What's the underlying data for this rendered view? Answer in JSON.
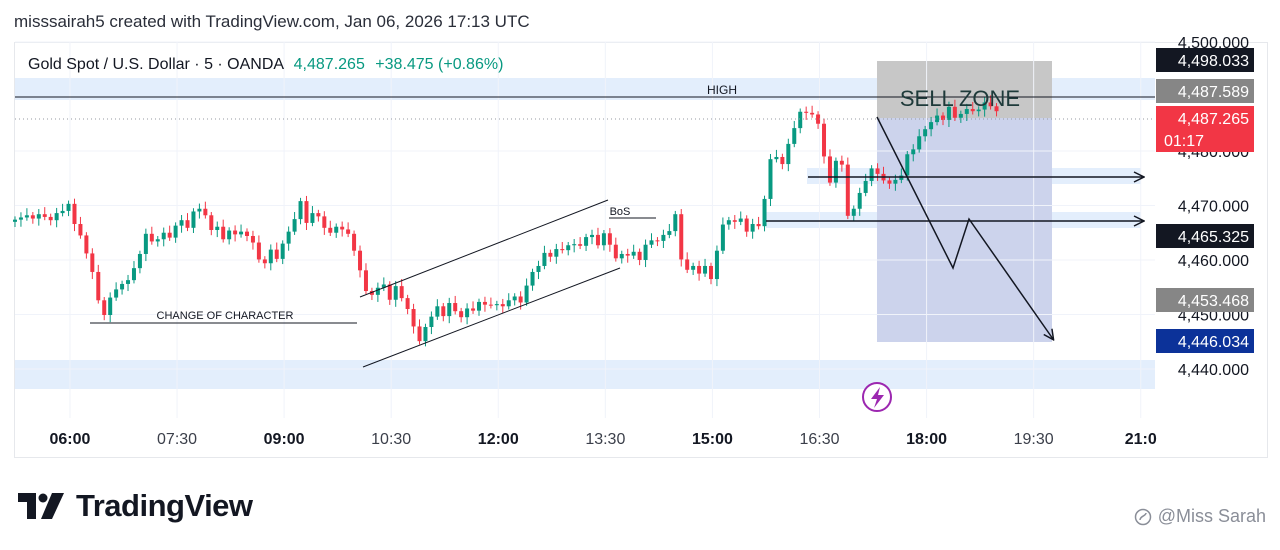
{
  "header": {
    "created_by": "misssairah5 created with TradingView.com, Jan 06, 2026 17:13 UTC"
  },
  "legend": {
    "symbol": "Gold Spot / U.S. Dollar · 5 · OANDA",
    "price": "4,487.265",
    "change": "+38.475 (+0.86%)"
  },
  "brand": {
    "name": "TradingView",
    "icon": "tradingview-logo-icon"
  },
  "watermark": {
    "text": "@Miss Sarah",
    "icon": "user-badge-icon"
  },
  "colors": {
    "up": "#089981",
    "down": "#f23645",
    "zone": "#e3eefc",
    "sell_zone": "#ccd3ec",
    "sell_zone_top": "#c7c7c7",
    "label_dark": "#131722",
    "label_grey": "#868686",
    "label_red": "#f23645",
    "label_blue": "#0c3299",
    "lightning": "#9c27b0"
  },
  "chart_data": {
    "type": "candlestick",
    "title": "Gold Spot / U.S. Dollar · 5 · OANDA",
    "y_axis": {
      "range": [
        4431,
        4500
      ],
      "ticks": [
        "4,440.000",
        "4,450.000",
        "4,460.000",
        "4,470.000",
        "4,480.000",
        "4,500.000"
      ],
      "tick_values": [
        4440,
        4450,
        4460,
        4470,
        4480,
        4500
      ]
    },
    "x_axis": {
      "range_hours": [
        5.23,
        21.2
      ],
      "ticks": [
        {
          "label": "06:00",
          "hour": 6.0,
          "bold": true
        },
        {
          "label": "07:30",
          "hour": 7.5,
          "bold": false
        },
        {
          "label": "09:00",
          "hour": 9.0,
          "bold": true
        },
        {
          "label": "10:30",
          "hour": 10.5,
          "bold": false
        },
        {
          "label": "12:00",
          "hour": 12.0,
          "bold": true
        },
        {
          "label": "13:30",
          "hour": 13.5,
          "bold": false
        },
        {
          "label": "15:00",
          "hour": 15.0,
          "bold": true
        },
        {
          "label": "16:30",
          "hour": 16.5,
          "bold": false
        },
        {
          "label": "18:00",
          "hour": 18.0,
          "bold": true
        },
        {
          "label": "19:30",
          "hour": 19.5,
          "bold": false
        },
        {
          "label": "21:0",
          "hour": 21.0,
          "bold": true
        }
      ]
    },
    "price_labels": [
      {
        "text": "4,498.033",
        "price": 4498.033,
        "style": "dark"
      },
      {
        "text": "4,487.589",
        "price": 4487.589,
        "style": "grey"
      },
      {
        "text": "4,487.265",
        "sub": "01:17",
        "price": 4487.265,
        "style": "red"
      },
      {
        "text": "4,465.325",
        "price": 4465.325,
        "style": "dark"
      },
      {
        "text": "4,453.468",
        "price": 4453.468,
        "style": "grey"
      },
      {
        "text": "4,446.034",
        "price": 4446.034,
        "style": "blue"
      }
    ],
    "annotations": {
      "high": "HIGH",
      "sell_zone": "SELL ZONE",
      "bos": "BoS",
      "choch": "CHANGE OF CHARACTER"
    },
    "closes": [
      4467.4,
      4467.8,
      4468.2,
      4467.6,
      4468.4,
      4467.9,
      4467.3,
      4468.6,
      4469.0,
      4470.3,
      4466.6,
      4464.5,
      4461.2,
      4457.8,
      4452.6,
      4449.9,
      4453.1,
      4454.6,
      4455.6,
      4456.3,
      4458.5,
      4461.1,
      4464.8,
      4463.4,
      4463.8,
      4465.0,
      4464.1,
      4466.3,
      4467.3,
      4465.9,
      4468.9,
      4469.4,
      4468.2,
      4465.5,
      4466.1,
      4463.8,
      4465.4,
      4464.7,
      4465.2,
      4464.4,
      4463.2,
      4460.1,
      4459.4,
      4461.9,
      4460.2,
      4463.0,
      4465.2,
      4467.5,
      4470.8,
      4466.8,
      4468.6,
      4468.0,
      4465.9,
      4465.0,
      4466.1,
      4465.6,
      4464.8,
      4461.7,
      4458.1,
      4454.3,
      4453.6,
      4454.9,
      4455.5,
      4452.7,
      4455.2,
      4453.0,
      4451.0,
      4447.8,
      4445.1,
      4447.7,
      4449.6,
      4451.5,
      4449.7,
      4452.1,
      4450.6,
      4449.5,
      4451.1,
      4450.7,
      4452.3,
      4451.8,
      4451.7,
      4451.9,
      4451.5,
      4452.6,
      4453.3,
      4452.2,
      4455.3,
      4457.8,
      4458.9,
      4461.3,
      4460.6,
      4462.0,
      4461.8,
      4462.7,
      4462.9,
      4462.6,
      4464.2,
      4464.6,
      4462.7,
      4464.9,
      4462.8,
      4460.3,
      4461.1,
      4460.8,
      4461.5,
      4460.0,
      4462.8,
      4463.6,
      4463.5,
      4464.6,
      4465.3,
      4468.4,
      4460.1,
      4458.2,
      4458.9,
      4457.5,
      4458.9,
      4456.5,
      4461.7,
      4466.5,
      4467.3,
      4467.0,
      4467.6,
      4465.2,
      4466.6,
      4466.2,
      4471.2,
      4478.5,
      4478.9,
      4477.6,
      4481.3,
      4484.2,
      4487.2,
      4487.0,
      4486.7,
      4485.0,
      4479.0,
      4474.2,
      4478.2,
      4477.5,
      4468.1,
      4469.4,
      4472.3,
      4474.5,
      4476.8,
      4475.8,
      4474.6,
      4474.0,
      4474.7,
      4475.5,
      4479.4,
      4480.3,
      4482.7,
      4484.0,
      4485.3,
      4486.5,
      4485.7,
      4488.1,
      4486.1,
      4486.8,
      4487.7,
      4487.3,
      4487.6,
      4488.9,
      4488.2,
      4487.3
    ]
  }
}
